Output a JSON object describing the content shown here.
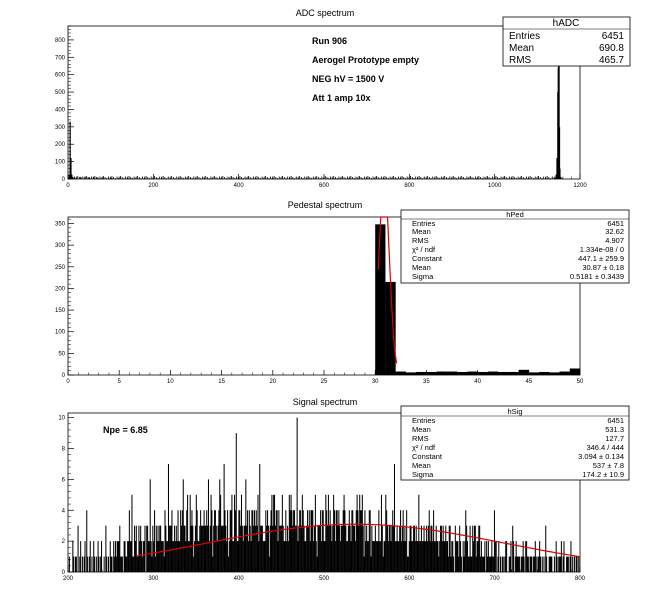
{
  "chart_data": [
    {
      "id": "adc",
      "type": "bar",
      "title": "ADC spectrum",
      "xlim": [
        0,
        1200
      ],
      "ylim": [
        0,
        880
      ],
      "xticks": [
        0,
        200,
        400,
        600,
        800,
        1000,
        1200
      ],
      "yticks": [
        0,
        100,
        200,
        300,
        400,
        500,
        600,
        700,
        800
      ],
      "annotations": [
        "Run  906",
        "Aerogel Prototype empty",
        "NEG hV = 1500 V",
        "Att 1 amp 10x"
      ],
      "stats": {
        "name": "hADC",
        "rows": [
          {
            "label": "Entries",
            "value": "6451"
          },
          {
            "label": "Mean",
            "value": "690.8"
          },
          {
            "label": "RMS",
            "value": "465.7"
          }
        ]
      },
      "bins": [
        [
          1,
          5
        ],
        [
          3,
          25
        ],
        [
          5,
          330
        ],
        [
          7,
          120
        ],
        [
          9,
          25
        ],
        [
          11,
          12
        ],
        [
          15,
          8
        ],
        [
          20,
          8
        ],
        [
          30,
          12
        ],
        [
          40,
          12
        ],
        [
          50,
          10
        ],
        [
          60,
          10
        ],
        [
          70,
          9
        ],
        [
          80,
          8
        ],
        [
          100,
          6
        ],
        [
          120,
          5
        ],
        [
          150,
          4
        ],
        [
          200,
          4
        ],
        [
          260,
          3
        ],
        [
          320,
          3
        ],
        [
          400,
          3
        ],
        [
          480,
          3
        ],
        [
          560,
          3
        ],
        [
          640,
          3
        ],
        [
          720,
          3
        ],
        [
          800,
          3
        ],
        [
          880,
          3
        ],
        [
          960,
          3
        ],
        [
          1040,
          3
        ],
        [
          1100,
          3
        ],
        [
          1140,
          4
        ],
        [
          1142,
          8
        ],
        [
          1144,
          25
        ],
        [
          1146,
          120
        ],
        [
          1148,
          500
        ],
        [
          1149,
          640
        ],
        [
          1150,
          860
        ],
        [
          1151,
          700
        ],
        [
          1152,
          300
        ],
        [
          1153,
          60
        ],
        [
          1155,
          12
        ],
        [
          1158,
          4
        ]
      ]
    },
    {
      "id": "ped",
      "type": "bar",
      "title": "Pedestal spectrum",
      "xlim": [
        0,
        50
      ],
      "ylim": [
        0,
        365
      ],
      "xticks": [
        0,
        5,
        10,
        15,
        20,
        25,
        30,
        35,
        40,
        45,
        50
      ],
      "yticks": [
        0,
        50,
        100,
        150,
        200,
        250,
        300,
        350
      ],
      "stats": {
        "name": "hPed",
        "rows": [
          {
            "label": "Entries",
            "value": "6451"
          },
          {
            "label": "Mean",
            "value": "32.62"
          },
          {
            "label": "RMS",
            "value": "4.907"
          },
          {
            "label": "χ² / ndf",
            "value": "1.334e-08 / 0"
          },
          {
            "label": "Constant",
            "value": "447.1 ± 259.9"
          },
          {
            "label": "Mean",
            "value": "30.87 ± 0.18"
          },
          {
            "label": "Sigma",
            "value": "0.5181 ± 0.3439"
          }
        ]
      },
      "bins": [
        [
          30,
          31,
          348
        ],
        [
          31,
          32,
          215
        ],
        [
          32,
          33,
          8
        ],
        [
          33,
          34,
          6
        ],
        [
          34,
          35,
          7
        ],
        [
          35,
          36,
          7
        ],
        [
          36,
          37,
          8
        ],
        [
          37,
          38,
          8
        ],
        [
          38,
          39,
          7
        ],
        [
          39,
          40,
          8
        ],
        [
          40,
          41,
          7
        ],
        [
          41,
          42,
          8
        ],
        [
          42,
          43,
          7
        ],
        [
          43,
          44,
          7
        ],
        [
          44,
          45,
          12
        ],
        [
          45,
          46,
          6
        ],
        [
          46,
          47,
          7
        ],
        [
          47,
          48,
          6
        ],
        [
          48,
          49,
          8
        ],
        [
          49,
          50,
          15
        ]
      ],
      "fit": {
        "constant": 447.1,
        "mean": 30.87,
        "sigma": 0.5181,
        "range": [
          30.3,
          32.1
        ]
      }
    },
    {
      "id": "sig",
      "type": "bar",
      "title": "Signal spectrum",
      "xlim": [
        200,
        800
      ],
      "ylim": [
        0,
        10.3
      ],
      "xticks": [
        200,
        300,
        400,
        500,
        600,
        700,
        800
      ],
      "yticks": [
        0,
        2,
        4,
        6,
        8,
        10
      ],
      "annotations": [
        "Npe = 6.85"
      ],
      "stats": {
        "name": "hSig",
        "rows": [
          {
            "label": "Entries",
            "value": "6451"
          },
          {
            "label": "Mean",
            "value": "531.3"
          },
          {
            "label": "RMS",
            "value": "127.7"
          },
          {
            "label": "χ² / ndf",
            "value": "346.4 / 444"
          },
          {
            "label": "Constant",
            "value": "3.094 ± 0.134"
          },
          {
            "label": "Mean",
            "value": "537 ± 7.8"
          },
          {
            "label": "Sigma",
            "value": "174.2 ± 10.9"
          }
        ]
      },
      "values": [
        0,
        1,
        0,
        0,
        0,
        2,
        1,
        0,
        1,
        1,
        0,
        3,
        0,
        1,
        2,
        0,
        1,
        0,
        1,
        2,
        0,
        4,
        1,
        0,
        1,
        2,
        0,
        1,
        0,
        2,
        1,
        0,
        1,
        0,
        2,
        1,
        0,
        1,
        2,
        0,
        0,
        1,
        0,
        3,
        1,
        0,
        1,
        0,
        2,
        1,
        1,
        0,
        2,
        1,
        2,
        1,
        2,
        2,
        2,
        3,
        1,
        1,
        1,
        0,
        2,
        2,
        1,
        1,
        2,
        2,
        4,
        2,
        2,
        5,
        1,
        1,
        3,
        2,
        3,
        1,
        1,
        3,
        2,
        3,
        2,
        1,
        2,
        2,
        3,
        0,
        3,
        3,
        2,
        2,
        6,
        2,
        1,
        3,
        2,
        4,
        1,
        3,
        2,
        3,
        2,
        3,
        3,
        2,
        2,
        2,
        1,
        4,
        3,
        2,
        2,
        7,
        3,
        3,
        3,
        4,
        2,
        2,
        3,
        2,
        3,
        2,
        4,
        2,
        2,
        4,
        3,
        4,
        6,
        3,
        3,
        2,
        4,
        5,
        2,
        2,
        5,
        3,
        4,
        3,
        1,
        2,
        3,
        5,
        4,
        2,
        2,
        3,
        4,
        3,
        3,
        3,
        4,
        3,
        3,
        4,
        3,
        6,
        2,
        3,
        5,
        4,
        1,
        3,
        4,
        4,
        3,
        2,
        3,
        4,
        6,
        5,
        3,
        3,
        3,
        7,
        4,
        3,
        2,
        4,
        1,
        2,
        4,
        4,
        5,
        2,
        2,
        5,
        4,
        9,
        2,
        2,
        4,
        4,
        3,
        5,
        3,
        2,
        3,
        3,
        6,
        3,
        4,
        2,
        4,
        3,
        2,
        4,
        4,
        3,
        4,
        3,
        4,
        3,
        5,
        2,
        7,
        3,
        3,
        3,
        2,
        2,
        2,
        4,
        3,
        4,
        3,
        1,
        3,
        4,
        5,
        3,
        5,
        5,
        3,
        4,
        4,
        2,
        4,
        3,
        3,
        3,
        5,
        3,
        2,
        2,
        4,
        2,
        3,
        2,
        5,
        4,
        5,
        4,
        3,
        4,
        4,
        3,
        3,
        10,
        2,
        3,
        4,
        4,
        3,
        5,
        4,
        3,
        2,
        2,
        3,
        4,
        3,
        4,
        2,
        4,
        4,
        4,
        2,
        3,
        5,
        2,
        1,
        3,
        3,
        3,
        4,
        2,
        4,
        4,
        2,
        2,
        5,
        4,
        3,
        5,
        3,
        4,
        3,
        2,
        3,
        5,
        4,
        2,
        4,
        4,
        3,
        4,
        3,
        2,
        3,
        3,
        4,
        5,
        4,
        3,
        2,
        2,
        3,
        4,
        3,
        2,
        4,
        4,
        3,
        3,
        2,
        4,
        5,
        4,
        3,
        5,
        4,
        4,
        5,
        3,
        1,
        4,
        2,
        3,
        2,
        2,
        4,
        4,
        1,
        3,
        2,
        2,
        2,
        3,
        2,
        2,
        2,
        4,
        2,
        2,
        5,
        3,
        1,
        2,
        2,
        5,
        4,
        3,
        2,
        3,
        3,
        2,
        3,
        4,
        3,
        7,
        2,
        2,
        3,
        2,
        2,
        3,
        4,
        2,
        3,
        4,
        2,
        3,
        2,
        4,
        1,
        1,
        2,
        3,
        3,
        2,
        2,
        3,
        3,
        2,
        3,
        2,
        2,
        5,
        2,
        2,
        3,
        2,
        2,
        3,
        2,
        2,
        3,
        2,
        3,
        4,
        2,
        3,
        3,
        2,
        4,
        2,
        2,
        3,
        2,
        2,
        1,
        2,
        3,
        3,
        2,
        3,
        2,
        2,
        3,
        2,
        2,
        1,
        3,
        3,
        1,
        2,
        2,
        1,
        0,
        3,
        2,
        2,
        2,
        1,
        3,
        2,
        1,
        0,
        2,
        1,
        2,
        4,
        3,
        2,
        1,
        1,
        3,
        1,
        1,
        3,
        2,
        3,
        3,
        1,
        2,
        2,
        3,
        3,
        1,
        2,
        1,
        1,
        1,
        2,
        0,
        2,
        1,
        2,
        1,
        1,
        1,
        2,
        1,
        1,
        4,
        2,
        2,
        0,
        1,
        2,
        0,
        1,
        0,
        1,
        1,
        0,
        1,
        2,
        2,
        0,
        0,
        1,
        1,
        2,
        0,
        3,
        2,
        0,
        1,
        2,
        1,
        1,
        1,
        1,
        0,
        1,
        1,
        2,
        1,
        0,
        2,
        2,
        1,
        1,
        0,
        1,
        1,
        1,
        0,
        1,
        1,
        2,
        1,
        0,
        1,
        1,
        2,
        1,
        0,
        1,
        0,
        1,
        0,
        3,
        1,
        0,
        0,
        1,
        1,
        1,
        1,
        0,
        0,
        1,
        0,
        2,
        1,
        0,
        1,
        1,
        1,
        2,
        0,
        1,
        2,
        0,
        0,
        1,
        1,
        1,
        0,
        1,
        2,
        0,
        1,
        0,
        1,
        0,
        1,
        1,
        0,
        1,
        0
      ],
      "fit": {
        "constant": 3.094,
        "mean": 537,
        "sigma": 174.2,
        "range": [
          280,
          800
        ]
      }
    }
  ]
}
